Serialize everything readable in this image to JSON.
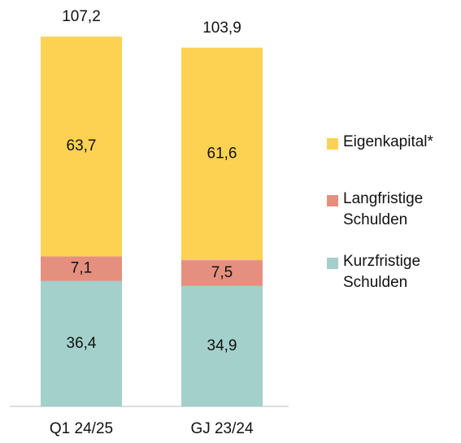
{
  "chart_data": {
    "type": "stacked_bar",
    "categories": [
      "Q1 24/25",
      "GJ 23/24"
    ],
    "series": [
      {
        "name": "Kurzfristige Schulden",
        "color": "#a3d0ca",
        "values": [
          36.4,
          34.9
        ],
        "value_labels": [
          "36,4",
          "34,9"
        ]
      },
      {
        "name": "Langfristige Schulden",
        "color": "#e5907f",
        "values": [
          7.1,
          7.5
        ],
        "value_labels": [
          "7,1",
          "7,5"
        ]
      },
      {
        "name": "Eigenkapital*",
        "color": "#fdd152",
        "values": [
          63.7,
          61.6
        ],
        "value_labels": [
          "63,7",
          "61,6"
        ]
      }
    ],
    "totals": [
      107.2,
      103.9
    ],
    "totals_labels": [
      "107,2",
      "103,9"
    ],
    "legend": "right"
  }
}
